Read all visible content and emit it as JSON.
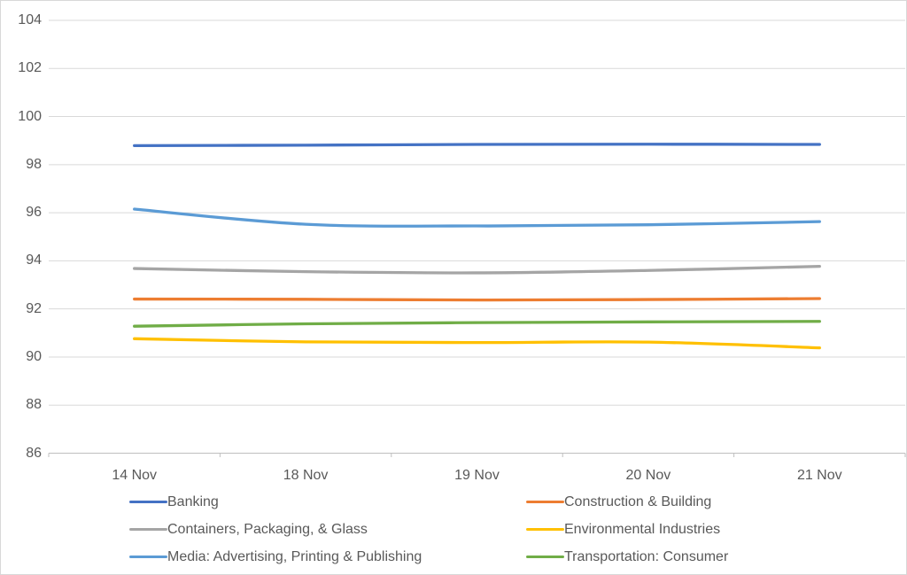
{
  "chart_data": {
    "type": "line",
    "title": "",
    "xlabel": "",
    "ylabel": "",
    "x": [
      "14 Nov",
      "18 Nov",
      "19 Nov",
      "20 Nov",
      "21 Nov"
    ],
    "series": [
      {
        "name": "Banking",
        "color": "#4472C4",
        "values": [
          98.79,
          98.81,
          98.84,
          98.85,
          98.84
        ]
      },
      {
        "name": "Construction & Building",
        "color": "#ED7D31",
        "values": [
          92.41,
          92.4,
          92.37,
          92.39,
          92.43
        ]
      },
      {
        "name": "Containers, Packaging, & Glass",
        "color": "#A5A5A5",
        "values": [
          93.68,
          93.55,
          93.5,
          93.6,
          93.77
        ]
      },
      {
        "name": "Environmental Industries",
        "color": "#FFC000",
        "values": [
          90.76,
          90.63,
          90.6,
          90.62,
          90.38
        ]
      },
      {
        "name": "Media: Advertising, Printing & Publishing",
        "color": "#5B9BD5",
        "values": [
          96.15,
          95.52,
          95.45,
          95.5,
          95.63
        ]
      },
      {
        "name": "Transportation: Consumer",
        "color": "#70AD47",
        "values": [
          91.28,
          91.38,
          91.43,
          91.46,
          91.48
        ]
      }
    ],
    "ylim": [
      86,
      104
    ],
    "yticks": [
      86,
      88,
      90,
      92,
      94,
      96,
      98,
      100,
      102,
      104
    ],
    "grid": "horizontal",
    "legend_position": "bottom",
    "legend_columns": 2,
    "line_smoothing": true
  },
  "style": {
    "axis_text_color": "#595959",
    "gridline_color": "#D9D9D9",
    "axis_line_color": "#BFBFBF",
    "border_color": "#D8D8D8",
    "background": "#FFFFFF"
  }
}
